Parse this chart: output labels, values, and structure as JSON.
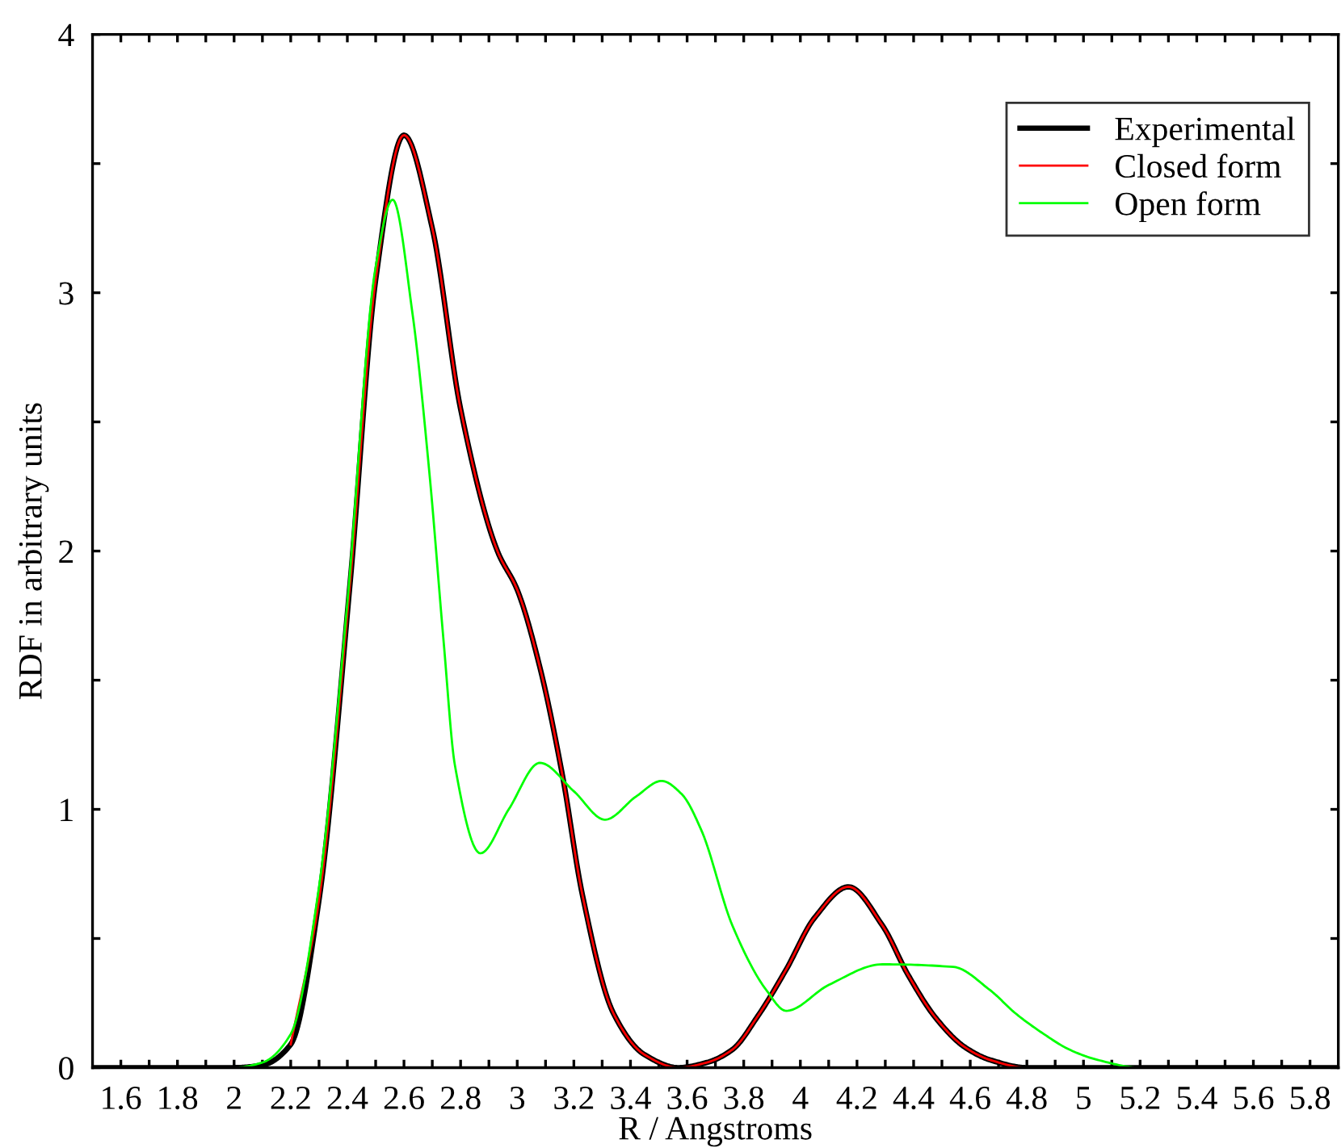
{
  "chart_data": {
    "type": "line",
    "xlabel": "R / Angstroms",
    "ylabel": "RDF in arbitrary units",
    "xlim": [
      1.5,
      5.9
    ],
    "ylim": [
      0,
      4
    ],
    "xticks": [
      1.6,
      {
        "value": 1.7,
        "label": null
      },
      1.8,
      {
        "value": 1.9,
        "label": null
      },
      2,
      {
        "value": 2.1,
        "label": null
      },
      2.2,
      {
        "value": 2.3,
        "label": null
      },
      2.4,
      {
        "value": 2.5,
        "label": null
      },
      2.6,
      {
        "value": 2.7,
        "label": null
      },
      2.8,
      {
        "value": 2.9,
        "label": null
      },
      3,
      {
        "value": 3.1,
        "label": null
      },
      3.2,
      {
        "value": 3.3,
        "label": null
      },
      3.4,
      {
        "value": 3.5,
        "label": null
      },
      3.6,
      {
        "value": 3.7,
        "label": null
      },
      3.8,
      {
        "value": 3.9,
        "label": null
      },
      4,
      {
        "value": 4.1,
        "label": null
      },
      4.2,
      {
        "value": 4.3,
        "label": null
      },
      4.4,
      {
        "value": 4.5,
        "label": null
      },
      4.6,
      {
        "value": 4.7,
        "label": null
      },
      4.8,
      {
        "value": 4.9,
        "label": null
      },
      5,
      {
        "value": 5.1,
        "label": null
      },
      5.2,
      {
        "value": 5.3,
        "label": null
      },
      5.4,
      {
        "value": 5.5,
        "label": null
      },
      5.6,
      {
        "value": 5.7,
        "label": null
      },
      5.8
    ],
    "yticks": [
      0,
      {
        "value": 0.5,
        "label": null
      },
      1,
      {
        "value": 1.5,
        "label": null
      },
      2,
      {
        "value": 2.5,
        "label": null
      },
      3,
      {
        "value": 3.5,
        "label": null
      },
      4
    ],
    "grid": false,
    "legend": "top right",
    "marker": "none",
    "line_style": "solid",
    "series": [
      {
        "name": "Experimental",
        "color": "#000000",
        "x": [
          1.5,
          2.0,
          2.1,
          2.2,
          2.3,
          2.41,
          2.5,
          2.6,
          2.7,
          2.8,
          2.93,
          3.0,
          3.08,
          3.16,
          3.23,
          3.34,
          3.45,
          3.57,
          3.67,
          3.76,
          3.85,
          3.95,
          4.05,
          4.17,
          4.29,
          4.38,
          4.48,
          4.58,
          4.67,
          4.8,
          5.9
        ],
        "values": [
          0,
          0,
          0.01,
          0.09,
          0.65,
          1.88,
          3.05,
          3.61,
          3.25,
          2.55,
          2.0,
          1.85,
          1.55,
          1.13,
          0.67,
          0.21,
          0.05,
          0.0,
          0.02,
          0.07,
          0.2,
          0.38,
          0.58,
          0.7,
          0.55,
          0.36,
          0.19,
          0.08,
          0.03,
          0.0,
          0
        ]
      },
      {
        "name": "Closed form",
        "color": "#ff0000",
        "x": [
          2.2,
          2.3,
          2.41,
          2.5,
          2.6,
          2.7,
          2.8,
          2.93,
          3.0,
          3.08,
          3.16,
          3.23,
          3.34,
          3.45,
          3.57,
          3.67,
          3.76,
          3.85,
          3.95,
          4.05,
          4.17,
          4.29,
          4.38,
          4.48,
          4.58,
          4.67,
          4.8,
          5.9
        ],
        "values": [
          0.09,
          0.65,
          1.88,
          3.05,
          3.61,
          3.25,
          2.55,
          2.0,
          1.85,
          1.55,
          1.13,
          0.67,
          0.21,
          0.05,
          0.0,
          0.02,
          0.07,
          0.2,
          0.38,
          0.58,
          0.7,
          0.55,
          0.36,
          0.19,
          0.08,
          0.03,
          0.0,
          0
        ]
      },
      {
        "name": "Open form",
        "color": "#00ff00",
        "x": [
          1.5,
          2.0,
          2.1,
          2.2,
          2.3,
          2.4,
          2.5,
          2.56,
          2.63,
          2.69,
          2.74,
          2.78,
          2.87,
          2.97,
          3.08,
          3.2,
          3.31,
          3.42,
          3.51,
          3.58,
          3.65,
          3.76,
          3.88,
          3.95,
          4.1,
          4.29,
          4.54,
          4.67,
          4.76,
          4.86,
          4.95,
          5.05,
          5.2,
          5.9
        ],
        "values": [
          0,
          0,
          0.02,
          0.13,
          0.7,
          1.8,
          3.1,
          3.36,
          2.92,
          2.3,
          1.65,
          1.17,
          0.83,
          1.0,
          1.18,
          1.07,
          0.96,
          1.05,
          1.11,
          1.06,
          0.92,
          0.55,
          0.3,
          0.22,
          0.32,
          0.4,
          0.39,
          0.3,
          0.21,
          0.13,
          0.07,
          0.03,
          0.0,
          0
        ]
      }
    ]
  }
}
